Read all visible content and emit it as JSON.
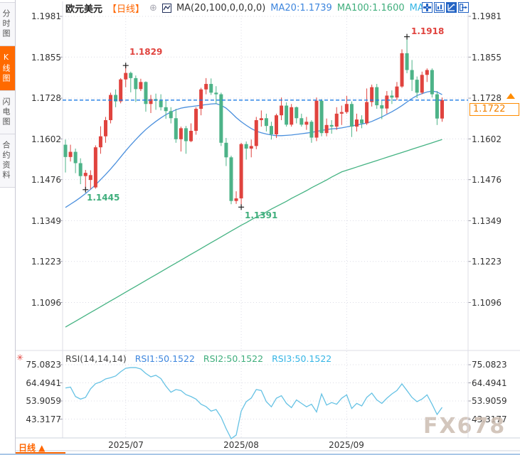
{
  "header": {
    "symbol": "欧元美元",
    "period_tag": "【日线】",
    "add_icon": "⊕",
    "ma_settings_label": "MA(20,100,0,0,0,0)",
    "ma20_label": "MA20:1.1739",
    "ma100_label": "MA100:1.1600",
    "ma_extra_label": "MA",
    "toolbar_icons": [
      "crosshair-icon",
      "axis-chart-icon",
      "trend-chart-icon",
      "exit-panel-icon"
    ]
  },
  "sidebar": {
    "tabs": [
      {
        "label": "分时图",
        "active": false
      },
      {
        "label": "K线图",
        "active": true
      },
      {
        "label": "闪电图",
        "active": false
      },
      {
        "label": "合约资料",
        "active": false
      }
    ]
  },
  "main_chart": {
    "y_ticks": [
      "1.1981",
      "1.1855",
      "1.1728",
      "1.1602",
      "1.1476",
      "1.1349",
      "1.1223",
      "1.1096"
    ],
    "current_price": "1.1722",
    "annotations": {
      "high_jul": "1.1829",
      "low_jun": "1.1445",
      "low_aug": "1.1391",
      "high_sep": "1.1918"
    }
  },
  "rsi_panel": {
    "title": "RSI(14,14,14)",
    "rsi1_label": "RSI1:50.1522",
    "rsi2_label": "RSI2:50.1522",
    "rsi3_label": "RSI3:50.1522",
    "settings_icon": "✳",
    "y_ticks": [
      "75.0823",
      "64.4941",
      "53.9059",
      "43.3177"
    ]
  },
  "x_axis": {
    "labels": [
      "2025/07",
      "2025/08",
      "2025/09"
    ]
  },
  "bottom_bar": {
    "period_label": "日线 ▲"
  },
  "watermark": "FX678",
  "colors": {
    "up": "#e0433e",
    "down": "#4db388",
    "ma20": "#4a8fdd",
    "ma100": "#45b383",
    "rsi": "#66c2e4",
    "price_line": "#1d7be5",
    "accent_orange": "#ff6600",
    "marker": "#222222"
  },
  "chart_data": {
    "type": "candlestick",
    "title": "欧元美元 日线 (EUR/USD Daily)",
    "y_axis": {
      "ticks": [
        1.1981,
        1.1855,
        1.1728,
        1.1602,
        1.1476,
        1.1349,
        1.1223,
        1.1096
      ]
    },
    "last_price": 1.1722,
    "ma20_current": 1.1739,
    "ma100_current": 1.16,
    "rsi_current": 50.1522,
    "months": [
      {
        "label": "2025/07",
        "i": 12
      },
      {
        "label": "2025/08",
        "i": 35
      },
      {
        "label": "2025/09",
        "i": 56
      }
    ],
    "markers": [
      {
        "i": 12,
        "price": 1.1829,
        "side": "high",
        "label": "1.1829"
      },
      {
        "i": 4,
        "price": 1.1445,
        "side": "low",
        "label": "1.1445"
      },
      {
        "i": 35,
        "price": 1.1391,
        "side": "low",
        "label": "1.1391"
      },
      {
        "i": 68,
        "price": 1.1918,
        "side": "high",
        "label": "1.1918"
      }
    ],
    "candles": [
      [
        1.1584,
        1.16,
        1.1498,
        1.1546
      ],
      [
        1.1546,
        1.1584,
        1.1532,
        1.1562
      ],
      [
        1.1562,
        1.1572,
        1.1496,
        1.1527
      ],
      [
        1.1527,
        1.1542,
        1.1462,
        1.1487
      ],
      [
        1.1487,
        1.1506,
        1.1445,
        1.1497
      ],
      [
        1.1475,
        1.1505,
        1.1447,
        1.149
      ],
      [
        1.1452,
        1.1582,
        1.1448,
        1.1576
      ],
      [
        1.1576,
        1.1641,
        1.1556,
        1.161
      ],
      [
        1.161,
        1.167,
        1.159,
        1.166
      ],
      [
        1.166,
        1.1745,
        1.165,
        1.1738
      ],
      [
        1.1738,
        1.1755,
        1.17,
        1.1718
      ],
      [
        1.1718,
        1.179,
        1.1712,
        1.1786
      ],
      [
        1.1786,
        1.1829,
        1.1762,
        1.1806
      ],
      [
        1.1806,
        1.181,
        1.1746,
        1.179
      ],
      [
        1.179,
        1.1798,
        1.1716,
        1.1756
      ],
      [
        1.1756,
        1.1788,
        1.175,
        1.1778
      ],
      [
        1.1778,
        1.178,
        1.1686,
        1.171
      ],
      [
        1.171,
        1.1738,
        1.1682,
        1.1725
      ],
      [
        1.1725,
        1.1742,
        1.1692,
        1.172
      ],
      [
        1.172,
        1.174,
        1.169,
        1.17
      ],
      [
        1.17,
        1.172,
        1.1664,
        1.1688
      ],
      [
        1.1688,
        1.17,
        1.165,
        1.1666
      ],
      [
        1.1666,
        1.1695,
        1.159,
        1.1601
      ],
      [
        1.1601,
        1.164,
        1.1563,
        1.1635
      ],
      [
        1.1635,
        1.1642,
        1.1556,
        1.1595
      ],
      [
        1.1595,
        1.165,
        1.1592,
        1.1627
      ],
      [
        1.1627,
        1.17,
        1.1615,
        1.1695
      ],
      [
        1.1695,
        1.176,
        1.1675,
        1.1755
      ],
      [
        1.1755,
        1.179,
        1.174,
        1.1772
      ],
      [
        1.1772,
        1.1789,
        1.1738,
        1.1745
      ],
      [
        1.1745,
        1.1765,
        1.171,
        1.174
      ],
      [
        1.174,
        1.1745,
        1.158,
        1.159
      ],
      [
        1.159,
        1.1605,
        1.1518,
        1.1545
      ],
      [
        1.1545,
        1.155,
        1.14,
        1.141
      ],
      [
        1.141,
        1.144,
        1.1401,
        1.1418
      ],
      [
        1.1418,
        1.159,
        1.1391,
        1.1586
      ],
      [
        1.1586,
        1.1594,
        1.1538,
        1.1572
      ],
      [
        1.1572,
        1.16,
        1.1545,
        1.158
      ],
      [
        1.158,
        1.167,
        1.157,
        1.166
      ],
      [
        1.166,
        1.169,
        1.164,
        1.1666
      ],
      [
        1.1666,
        1.168,
        1.1625,
        1.1642
      ],
      [
        1.1642,
        1.1655,
        1.16,
        1.1616
      ],
      [
        1.1616,
        1.168,
        1.1605,
        1.1675
      ],
      [
        1.1675,
        1.173,
        1.166,
        1.1705
      ],
      [
        1.1705,
        1.1715,
        1.164,
        1.1646
      ],
      [
        1.1646,
        1.171,
        1.164,
        1.17
      ],
      [
        1.17,
        1.1702,
        1.165,
        1.1666
      ],
      [
        1.1666,
        1.168,
        1.164,
        1.1646
      ],
      [
        1.1646,
        1.167,
        1.163,
        1.1655
      ],
      [
        1.1655,
        1.166,
        1.159,
        1.1606
      ],
      [
        1.1606,
        1.173,
        1.1595,
        1.172
      ],
      [
        1.172,
        1.1725,
        1.161,
        1.162
      ],
      [
        1.162,
        1.1665,
        1.161,
        1.1645
      ],
      [
        1.1645,
        1.166,
        1.1618,
        1.164
      ],
      [
        1.164,
        1.17,
        1.163,
        1.168
      ],
      [
        1.168,
        1.1705,
        1.1645,
        1.1685
      ],
      [
        1.1685,
        1.1735,
        1.168,
        1.171
      ],
      [
        1.171,
        1.1718,
        1.1608,
        1.164
      ],
      [
        1.164,
        1.168,
        1.1625,
        1.1662
      ],
      [
        1.1662,
        1.1675,
        1.1635,
        1.165
      ],
      [
        1.165,
        1.1758,
        1.1645,
        1.1716
      ],
      [
        1.1716,
        1.177,
        1.1702,
        1.1762
      ],
      [
        1.1762,
        1.1772,
        1.1695,
        1.1706
      ],
      [
        1.1706,
        1.1722,
        1.1663,
        1.1696
      ],
      [
        1.1696,
        1.175,
        1.168,
        1.1736
      ],
      [
        1.1736,
        1.1752,
        1.171,
        1.173
      ],
      [
        1.173,
        1.1778,
        1.1722,
        1.1764
      ],
      [
        1.1764,
        1.1879,
        1.176,
        1.1867
      ],
      [
        1.1867,
        1.1918,
        1.1805,
        1.1815
      ],
      [
        1.1815,
        1.1846,
        1.175,
        1.1785
      ],
      [
        1.1785,
        1.1795,
        1.1728,
        1.1745
      ],
      [
        1.1745,
        1.181,
        1.174,
        1.18
      ],
      [
        1.18,
        1.182,
        1.1778,
        1.1815
      ],
      [
        1.1815,
        1.182,
        1.173,
        1.174
      ],
      [
        1.174,
        1.175,
        1.1645,
        1.1665
      ],
      [
        1.1665,
        1.173,
        1.1655,
        1.1722
      ]
    ],
    "ma20": [
      1.139,
      1.14,
      1.141,
      1.1421,
      1.1433,
      1.1446,
      1.146,
      1.1476,
      1.1492,
      1.1509,
      1.1527,
      1.1546,
      1.1565,
      1.1583,
      1.16,
      1.1616,
      1.1631,
      1.1644,
      1.1656,
      1.1667,
      1.1677,
      1.1685,
      1.1692,
      1.1697,
      1.17,
      1.1702,
      1.1704,
      1.1706,
      1.1708,
      1.171,
      1.1711,
      1.1706,
      1.1697,
      1.1683,
      1.1668,
      1.1655,
      1.1644,
      1.1634,
      1.1626,
      1.1621,
      1.1617,
      1.1614,
      1.1612,
      1.1612,
      1.1613,
      1.1614,
      1.1616,
      1.1618,
      1.162,
      1.1622,
      1.1625,
      1.1628,
      1.1631,
      1.1633,
      1.1634,
      1.1636,
      1.1639,
      1.1642,
      1.1645,
      1.1648,
      1.1651,
      1.1656,
      1.1663,
      1.167,
      1.1678,
      1.1686,
      1.1695,
      1.1705,
      1.1716,
      1.1727,
      1.1736,
      1.1742,
      1.1747,
      1.175,
      1.1747,
      1.1739
    ],
    "ma100": [
      1.102,
      1.1029,
      1.1038,
      1.1047,
      1.1056,
      1.1065,
      1.1074,
      1.1083,
      1.1092,
      1.1101,
      1.111,
      1.1119,
      1.1128,
      1.1137,
      1.1146,
      1.1155,
      1.1164,
      1.1173,
      1.1182,
      1.1191,
      1.12,
      1.1209,
      1.1218,
      1.1227,
      1.1236,
      1.1245,
      1.1254,
      1.1263,
      1.1272,
      1.1281,
      1.129,
      1.1299,
      1.1308,
      1.1317,
      1.1326,
      1.1335,
      1.1343,
      1.1352,
      1.136,
      1.1368,
      1.1376,
      1.1385,
      1.1393,
      1.1401,
      1.1409,
      1.1418,
      1.1426,
      1.1434,
      1.1442,
      1.1451,
      1.1459,
      1.1467,
      1.1475,
      1.1484,
      1.1492,
      1.15,
      1.1505,
      1.151,
      1.1515,
      1.152,
      1.1525,
      1.153,
      1.1535,
      1.154,
      1.1545,
      1.155,
      1.1555,
      1.156,
      1.1565,
      1.157,
      1.1575,
      1.158,
      1.1585,
      1.159,
      1.1595,
      1.16
    ],
    "rsi": {
      "params": "(14,14,14)",
      "ticks": [
        75.0823,
        64.4941,
        53.9059,
        43.3177
      ],
      "values": [
        61.5,
        62.0,
        56.5,
        55.0,
        56.0,
        61.0,
        64.0,
        65.0,
        66.8,
        67.5,
        68.5,
        71.0,
        73.0,
        73.4,
        73.4,
        72.6,
        70.0,
        68.0,
        68.9,
        67.0,
        62.6,
        59.0,
        60.6,
        60.0,
        57.6,
        56.5,
        55.0,
        52.0,
        50.6,
        48.0,
        48.9,
        44.4,
        37.7,
        31.9,
        34.0,
        48.0,
        53.5,
        55.6,
        60.6,
        60.0,
        53.5,
        50.5,
        55.5,
        57.0,
        52.5,
        50.0,
        54.5,
        52.5,
        50.5,
        52.0,
        47.5,
        58.0,
        51.5,
        53.0,
        52.0,
        55.5,
        57.5,
        49.5,
        52.5,
        51.0,
        56.0,
        58.5,
        54.5,
        52.5,
        55.5,
        58.0,
        60.0,
        63.9,
        60.0,
        56.0,
        53.5,
        55.0,
        57.5,
        52.0,
        46.0,
        50.1522
      ]
    }
  }
}
